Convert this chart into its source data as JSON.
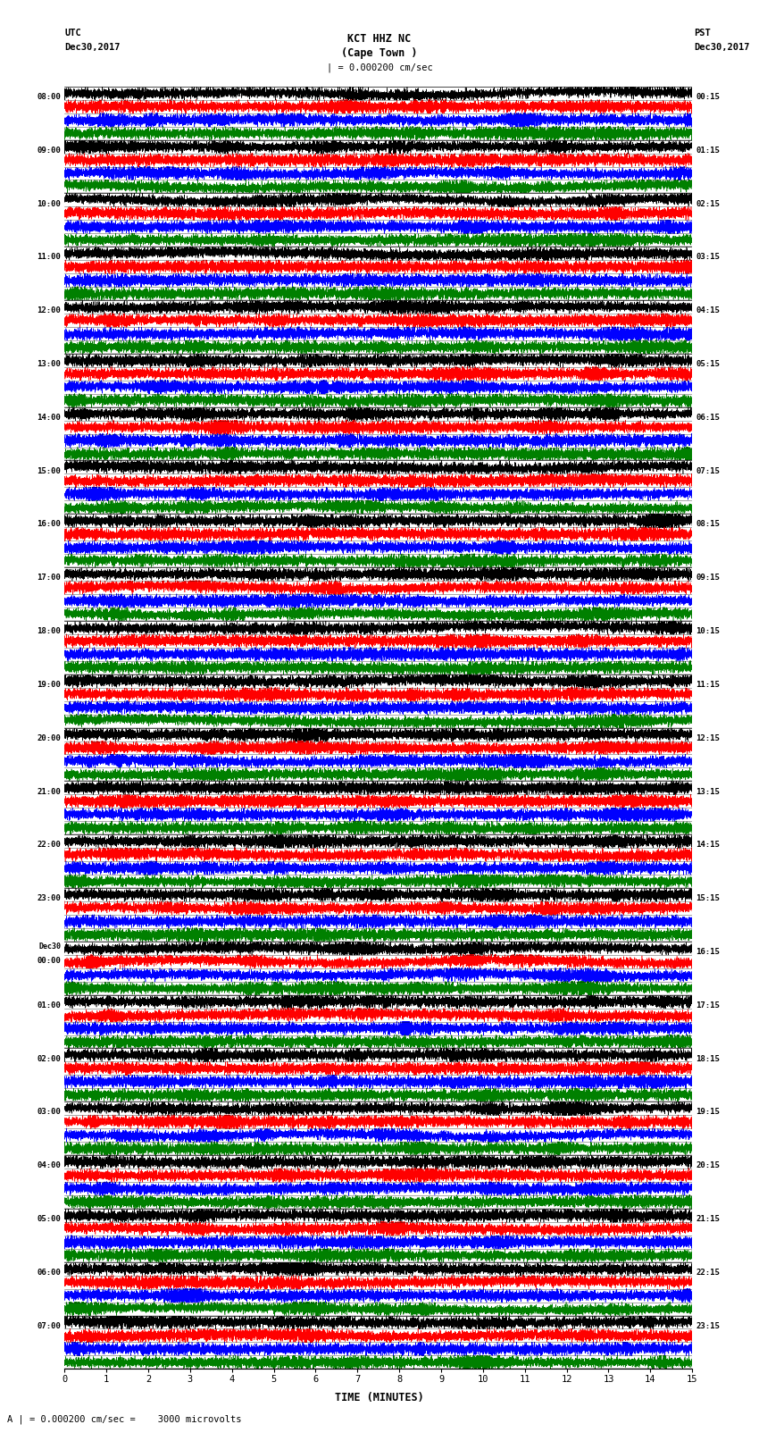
{
  "title_line1": "KCT HHZ NC",
  "title_line2": "(Cape Town )",
  "scale_label": "| = 0.000200 cm/sec",
  "footer_label": "A | = 0.000200 cm/sec =    3000 microvolts",
  "utc_label": "UTC\nDec30,2017",
  "pst_label": "PST\nDec30,2017",
  "left_times": [
    "08:00",
    "09:00",
    "10:00",
    "11:00",
    "12:00",
    "13:00",
    "14:00",
    "15:00",
    "16:00",
    "17:00",
    "18:00",
    "19:00",
    "20:00",
    "21:00",
    "22:00",
    "23:00",
    "Dec30\n00:00",
    "01:00",
    "02:00",
    "03:00",
    "04:00",
    "05:00",
    "06:00",
    "07:00"
  ],
  "right_times": [
    "00:15",
    "01:15",
    "02:15",
    "03:15",
    "04:15",
    "05:15",
    "06:15",
    "07:15",
    "08:15",
    "09:15",
    "10:15",
    "11:15",
    "12:15",
    "13:15",
    "14:15",
    "15:15",
    "16:15",
    "17:15",
    "18:15",
    "19:15",
    "20:15",
    "21:15",
    "22:15",
    "23:15"
  ],
  "num_rows": 24,
  "time_label": "TIME (MINUTES)",
  "xticks": [
    0,
    1,
    2,
    3,
    4,
    5,
    6,
    7,
    8,
    9,
    10,
    11,
    12,
    13,
    14,
    15
  ],
  "bg_color": "#ffffff",
  "trace_colors": [
    "black",
    "red",
    "blue",
    "green"
  ],
  "num_subtraces": 4,
  "npts": 9000
}
